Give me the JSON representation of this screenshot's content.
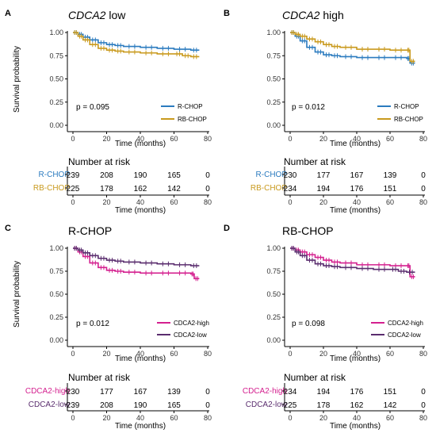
{
  "figure": {
    "ylabel": "Survival probability",
    "xlabel": "Time (months)",
    "risk_title": "Number at risk",
    "x_ticks": [
      "0",
      "20",
      "40",
      "60",
      "80"
    ],
    "y_ticks": [
      "0.00",
      "0.25",
      "0.50",
      "0.75",
      "1.00"
    ]
  },
  "panels": [
    {
      "letter": "A",
      "title_gene": "CDCA2",
      "title_rest": " low",
      "pvalue": "p = 0.095",
      "legend": [
        "R-CHOP",
        "RB-CHOP"
      ],
      "risk": [
        {
          "label": "R-CHOP",
          "values": [
            "239",
            "208",
            "190",
            "165",
            "0"
          ]
        },
        {
          "label": "RB-CHOP",
          "values": [
            "225",
            "178",
            "162",
            "142",
            "0"
          ]
        }
      ]
    },
    {
      "letter": "B",
      "title_gene": "CDCA2",
      "title_rest": " high",
      "pvalue": "p = 0.012",
      "legend": [
        "R-CHOP",
        "RB-CHOP"
      ],
      "risk": [
        {
          "label": "R-CHOP",
          "values": [
            "230",
            "177",
            "167",
            "139",
            "0"
          ]
        },
        {
          "label": "RB-CHOP",
          "values": [
            "234",
            "194",
            "176",
            "151",
            "0"
          ]
        }
      ]
    },
    {
      "letter": "C",
      "title_gene": "",
      "title_rest": "R-CHOP",
      "pvalue": "p = 0.012",
      "legend": [
        "CDCA2-high",
        "CDCA2-low"
      ],
      "risk": [
        {
          "label": "CDCA2-high",
          "values": [
            "230",
            "177",
            "167",
            "139",
            "0"
          ]
        },
        {
          "label": "CDCA2-low",
          "values": [
            "239",
            "208",
            "190",
            "165",
            "0"
          ]
        }
      ]
    },
    {
      "letter": "D",
      "title_gene": "",
      "title_rest": "RB-CHOP",
      "pvalue": "p = 0.098",
      "legend": [
        "CDCA2-high",
        "CDCA2-low"
      ],
      "risk": [
        {
          "label": "CDCA2-high",
          "values": [
            "234",
            "194",
            "176",
            "151",
            "0"
          ]
        },
        {
          "label": "CDCA2-low",
          "values": [
            "225",
            "178",
            "162",
            "142",
            "0"
          ]
        }
      ]
    }
  ],
  "colors": {
    "r_chop": "#2b7bbf",
    "rb_chop": "#c99a1e",
    "cdca2_high": "#d4208f",
    "cdca2_low": "#5a2d6e"
  },
  "chart_data": [
    {
      "type": "line",
      "title": "CDCA2 low",
      "xlabel": "Time (months)",
      "ylabel": "Survival probability",
      "xlim": [
        0,
        80
      ],
      "ylim": [
        0,
        1
      ],
      "series": [
        {
          "name": "R-CHOP",
          "color": "#2b7bbf",
          "x": [
            0,
            3,
            6,
            10,
            15,
            20,
            25,
            30,
            40,
            50,
            60,
            70,
            75
          ],
          "y": [
            1.0,
            0.98,
            0.95,
            0.92,
            0.89,
            0.87,
            0.86,
            0.85,
            0.84,
            0.83,
            0.82,
            0.81,
            0.81
          ]
        },
        {
          "name": "RB-CHOP",
          "color": "#c99a1e",
          "x": [
            0,
            3,
            6,
            10,
            15,
            20,
            25,
            30,
            40,
            50,
            60,
            65,
            70,
            75
          ],
          "y": [
            1.0,
            0.96,
            0.92,
            0.87,
            0.83,
            0.81,
            0.8,
            0.79,
            0.78,
            0.77,
            0.77,
            0.75,
            0.74,
            0.74
          ]
        }
      ]
    },
    {
      "type": "line",
      "title": "CDCA2 high",
      "xlabel": "Time (months)",
      "ylabel": "Survival probability",
      "xlim": [
        0,
        80
      ],
      "ylim": [
        0,
        1
      ],
      "series": [
        {
          "name": "R-CHOP",
          "color": "#2b7bbf",
          "x": [
            0,
            3,
            6,
            10,
            15,
            20,
            25,
            30,
            40,
            50,
            60,
            70,
            72,
            75
          ],
          "y": [
            1.0,
            0.96,
            0.91,
            0.84,
            0.79,
            0.76,
            0.75,
            0.74,
            0.73,
            0.73,
            0.73,
            0.72,
            0.67,
            0.67
          ]
        },
        {
          "name": "RB-CHOP",
          "color": "#c99a1e",
          "x": [
            0,
            3,
            6,
            10,
            15,
            20,
            25,
            30,
            40,
            50,
            60,
            70,
            72,
            75
          ],
          "y": [
            1.0,
            0.98,
            0.96,
            0.93,
            0.9,
            0.87,
            0.85,
            0.84,
            0.82,
            0.82,
            0.81,
            0.81,
            0.69,
            0.69
          ]
        }
      ]
    },
    {
      "type": "line",
      "title": "R-CHOP",
      "xlabel": "Time (months)",
      "ylabel": "Survival probability",
      "xlim": [
        0,
        80
      ],
      "ylim": [
        0,
        1
      ],
      "series": [
        {
          "name": "CDCA2-high",
          "color": "#d4208f",
          "x": [
            0,
            3,
            6,
            10,
            15,
            20,
            25,
            30,
            40,
            50,
            60,
            70,
            72,
            75
          ],
          "y": [
            1.0,
            0.96,
            0.91,
            0.84,
            0.79,
            0.76,
            0.75,
            0.74,
            0.73,
            0.73,
            0.73,
            0.72,
            0.67,
            0.67
          ]
        },
        {
          "name": "CDCA2-low",
          "color": "#5a2d6e",
          "x": [
            0,
            3,
            6,
            10,
            15,
            20,
            25,
            30,
            40,
            50,
            60,
            70,
            75
          ],
          "y": [
            1.0,
            0.98,
            0.95,
            0.92,
            0.89,
            0.87,
            0.86,
            0.85,
            0.84,
            0.83,
            0.82,
            0.81,
            0.81
          ]
        }
      ]
    },
    {
      "type": "line",
      "title": "RB-CHOP",
      "xlabel": "Time (months)",
      "ylabel": "Survival probability",
      "xlim": [
        0,
        80
      ],
      "ylim": [
        0,
        1
      ],
      "series": [
        {
          "name": "CDCA2-high",
          "color": "#d4208f",
          "x": [
            0,
            3,
            6,
            10,
            15,
            20,
            25,
            30,
            40,
            50,
            60,
            70,
            72,
            75
          ],
          "y": [
            1.0,
            0.98,
            0.96,
            0.93,
            0.9,
            0.87,
            0.85,
            0.84,
            0.82,
            0.82,
            0.81,
            0.81,
            0.69,
            0.69
          ]
        },
        {
          "name": "CDCA2-low",
          "color": "#5a2d6e",
          "x": [
            0,
            3,
            6,
            10,
            15,
            20,
            25,
            30,
            40,
            50,
            60,
            65,
            70,
            75
          ],
          "y": [
            1.0,
            0.96,
            0.92,
            0.87,
            0.83,
            0.81,
            0.8,
            0.79,
            0.78,
            0.77,
            0.77,
            0.75,
            0.74,
            0.74
          ]
        }
      ]
    }
  ]
}
